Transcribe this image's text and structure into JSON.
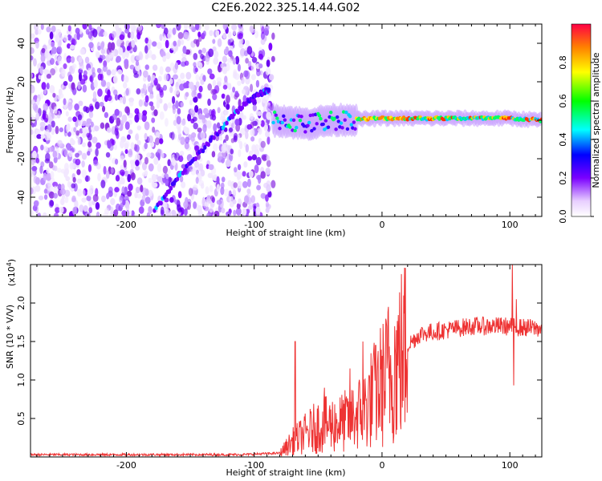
{
  "title": "C2E6.2022.325.14.44.G02",
  "chart_data": [
    {
      "type": "heatmap",
      "xlabel": "Height of straight line (km)",
      "ylabel": "Frequency (Hz)",
      "xlim": [
        -275,
        125
      ],
      "ylim": [
        -50,
        50
      ],
      "xticks": [
        -200,
        -100,
        0,
        100
      ],
      "yticks": [
        -40,
        -20,
        0,
        20,
        40
      ],
      "xtick_labels": [
        "-200",
        "-100",
        "0",
        "100"
      ],
      "ytick_labels": [
        "-40",
        "-20",
        "0",
        "20",
        "40"
      ],
      "colorbar": {
        "label": "Normalized spectral amplitude",
        "range": [
          0,
          1
        ],
        "ticks": [
          0.0,
          0.2,
          0.4,
          0.6,
          0.8
        ],
        "tick_labels": [
          "0.0",
          "0.2",
          "0.4",
          "0.6",
          "0.8"
        ]
      },
      "features": {
        "noise_region_x": [
          -275,
          -85
        ],
        "diagonal_trace": [
          [
            -178,
            -47
          ],
          [
            -160,
            -30
          ],
          [
            -140,
            -15
          ],
          [
            -120,
            0
          ],
          [
            -105,
            10
          ],
          [
            -95,
            14
          ],
          [
            -88,
            16
          ]
        ],
        "carrier_line": [
          [
            -80,
            0
          ],
          [
            -60,
            -2
          ],
          [
            -40,
            0
          ],
          [
            0,
            1
          ],
          [
            50,
            1
          ],
          [
            100,
            1
          ],
          [
            125,
            0
          ]
        ]
      }
    },
    {
      "type": "line",
      "xlabel": "Height of straight line (km)",
      "ylabel": "SNR (10 * V/V)",
      "y_multiplier": "(x10",
      "y_multiplier_exp": "4",
      "y_multiplier_close": ")",
      "xlim": [
        -275,
        125
      ],
      "ylim": [
        0,
        2.5
      ],
      "xticks": [
        -200,
        -100,
        0,
        100
      ],
      "yticks": [
        0.5,
        1.0,
        1.5,
        2.0
      ],
      "xtick_labels": [
        "-200",
        "-100",
        "0",
        "100"
      ],
      "ytick_labels": [
        "0.5",
        "1.0",
        "1.5",
        "2.0"
      ],
      "color": "#ee3333",
      "envelope": [
        [
          -275,
          0.03
        ],
        [
          -110,
          0.03
        ],
        [
          -80,
          0.05
        ],
        [
          -70,
          0.2
        ],
        [
          -50,
          0.4
        ],
        [
          -30,
          0.45
        ],
        [
          -15,
          0.6
        ],
        [
          0,
          0.95
        ],
        [
          10,
          1.2
        ],
        [
          20,
          1.45
        ],
        [
          30,
          1.6
        ],
        [
          50,
          1.65
        ],
        [
          70,
          1.7
        ],
        [
          95,
          1.7
        ],
        [
          110,
          1.68
        ],
        [
          125,
          1.67
        ]
      ],
      "spikes": [
        [
          -68,
          1.5
        ],
        [
          -45,
          0.9
        ],
        [
          -25,
          1.15
        ],
        [
          -15,
          1.5
        ],
        [
          -5,
          1.45
        ],
        [
          5,
          1.95
        ],
        [
          102,
          2.55
        ],
        [
          103,
          0.93
        ],
        [
          105,
          2.05
        ]
      ]
    }
  ]
}
